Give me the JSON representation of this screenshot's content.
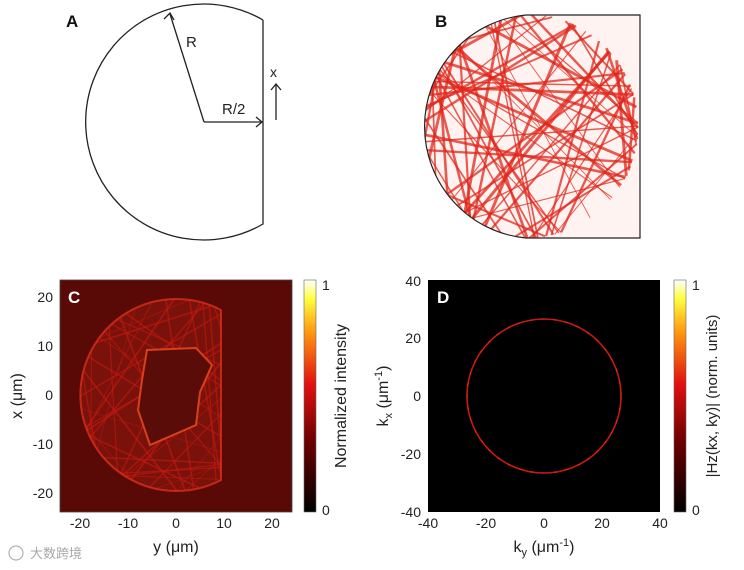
{
  "panels": {
    "A": {
      "label": "A",
      "radius_label": "R",
      "half_radius_label": "R/2",
      "axis_label": "x"
    },
    "B": {
      "label": "B"
    },
    "C": {
      "label": "C",
      "xlabel": "y (μm)",
      "ylabel": "x (μm)",
      "x_ticks": [
        "-20",
        "-10",
        "0",
        "10",
        "20"
      ],
      "y_ticks": [
        "20",
        "10",
        "0",
        "-10",
        "-20"
      ],
      "colorbar": {
        "label": "Normalized intensity",
        "max": "1",
        "min": "0"
      }
    },
    "D": {
      "label": "D",
      "xlabel_main": "k",
      "xlabel_sub": "y",
      "xlabel_unit": " (μm",
      "xlabel_exp": "-1",
      "xlabel_close": ")",
      "ylabel_main": "k",
      "ylabel_sub": "x",
      "ylabel_unit": " (μm",
      "ylabel_exp": "-1",
      "ylabel_close": ")",
      "x_ticks": [
        "-40",
        "-20",
        "0",
        "20",
        "40"
      ],
      "y_ticks": [
        "40",
        "20",
        "0",
        "-20",
        "-40"
      ],
      "colorbar": {
        "label": "|Hz(kx, ky)| (norm. units)",
        "max": "1",
        "min": "0"
      }
    }
  },
  "colors": {
    "heat_dark": "#5a0a06",
    "heat_red": "#d21a10",
    "heat_orange": "#ff7a1a",
    "heat_yellow": "#ffff60",
    "ray_red": "#e8281c"
  },
  "watermark": "大数跨境"
}
